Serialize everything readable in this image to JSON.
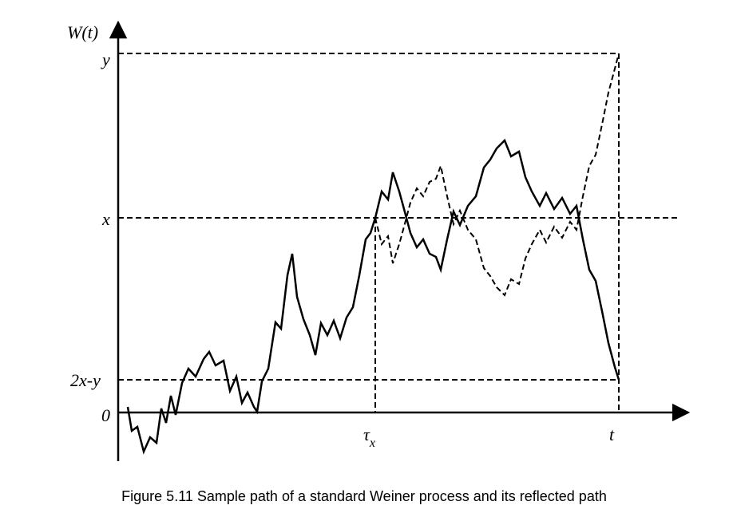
{
  "axis_label": "W(t)",
  "levels": {
    "y": "y",
    "x": "x",
    "reflected": "2x-y",
    "zero": "0"
  },
  "times": {
    "tau": "τ",
    "tau_sub": "x",
    "t": "t"
  },
  "caption": "Figure 5.11 Sample path of a standard Weiner process and its reflected path"
}
